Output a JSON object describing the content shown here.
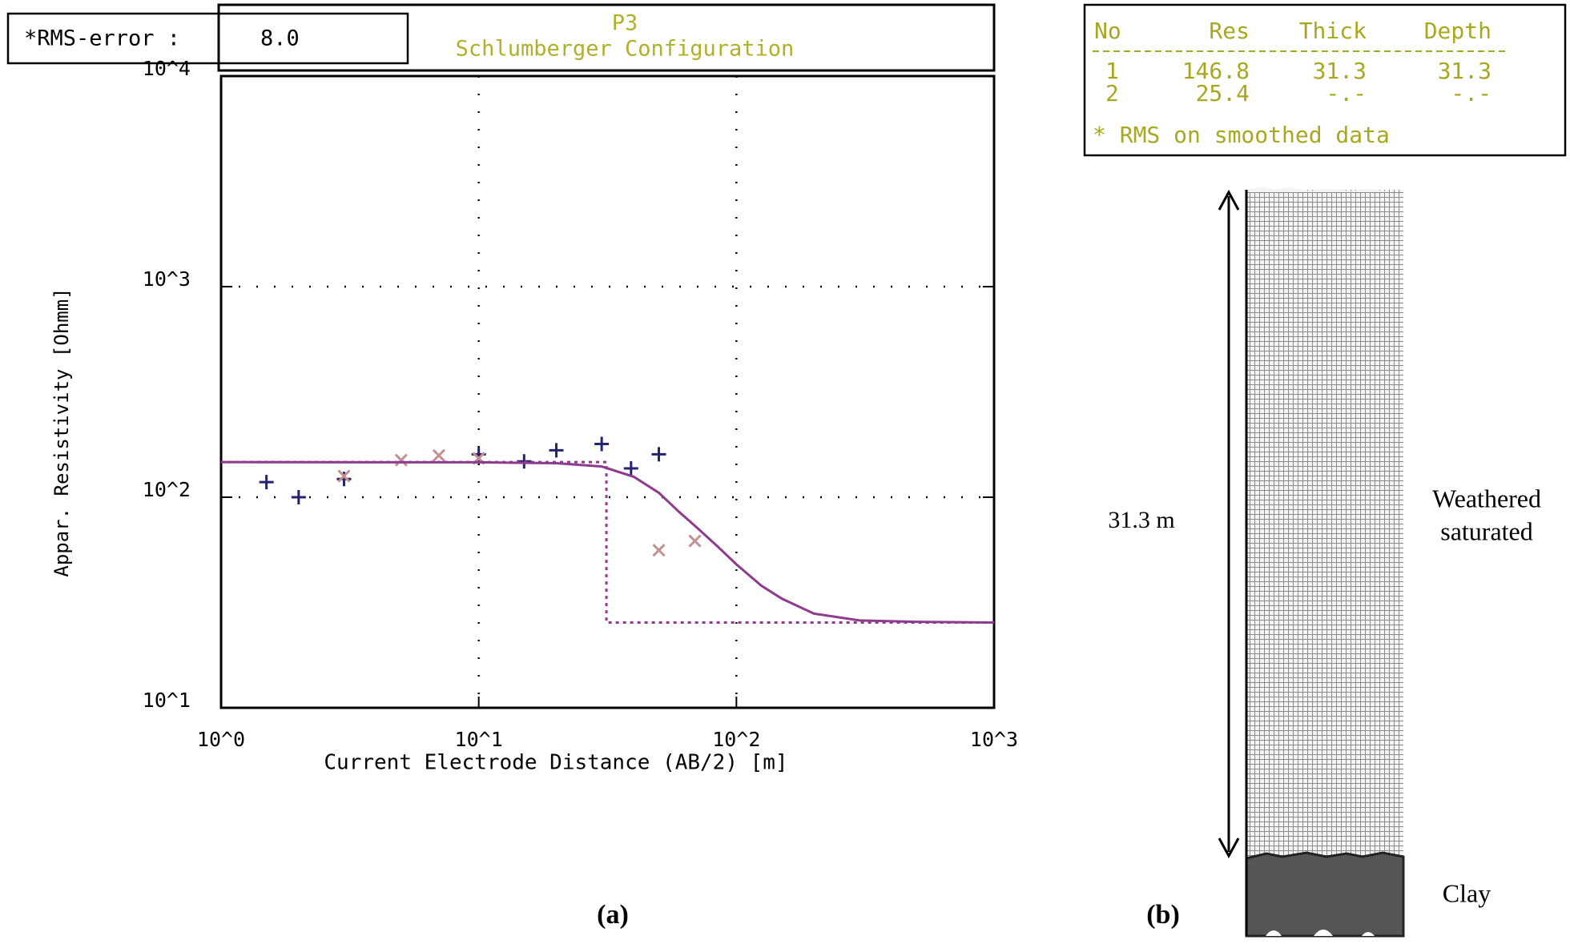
{
  "chart_data": {
    "type": "scatter",
    "title": "P3",
    "subtitle": "Schlumberger Configuration",
    "xlabel": "Current Electrode Distance (AB/2) [m]",
    "ylabel": "Appar. Resistivity [Ohmm]",
    "log_x": true,
    "log_y": true,
    "grid": true,
    "xlim": [
      1,
      1000
    ],
    "ylim": [
      10,
      10000
    ],
    "xticks": [
      {
        "value": 1,
        "label": "10^0"
      },
      {
        "value": 10,
        "label": "10^1"
      },
      {
        "value": 100,
        "label": "10^2"
      },
      {
        "value": 1000,
        "label": "10^3"
      }
    ],
    "yticks": [
      {
        "value": 10,
        "label": "10^1"
      },
      {
        "value": 100,
        "label": "10^2"
      },
      {
        "value": 1000,
        "label": "10^3"
      },
      {
        "value": 10000,
        "label": "10^4"
      }
    ],
    "series": [
      {
        "type": "scatter",
        "marker": "+",
        "color": "#23236e",
        "x": [
          1.5,
          2,
          3,
          10,
          15,
          20,
          30,
          39,
          50
        ],
        "values": [
          118,
          100,
          122,
          160,
          148,
          167,
          179,
          137,
          160
        ]
      },
      {
        "type": "scatter",
        "marker": "x",
        "color": "#c49090",
        "x": [
          3,
          5,
          7,
          10,
          50,
          69
        ],
        "values": [
          126,
          150,
          158,
          153,
          56,
          62
        ]
      },
      {
        "type": "line",
        "dash": false,
        "color": "#8e3a8e",
        "x": [
          1,
          10,
          20,
          30,
          40,
          50,
          60,
          70,
          85,
          100,
          125,
          150,
          200,
          300,
          500,
          1000
        ],
        "values": [
          146.8,
          146.5,
          145,
          140,
          125,
          105,
          85,
          72,
          58,
          48,
          38,
          33,
          28,
          26,
          25.6,
          25.4
        ]
      },
      {
        "type": "line",
        "dash": true,
        "color": "#8e3a8e",
        "x": [
          1,
          31.3,
          31.3,
          1000
        ],
        "values": [
          146.8,
          146.8,
          25.4,
          25.4
        ]
      }
    ]
  },
  "rms": {
    "label": "*RMS-error :",
    "value": "8.0"
  },
  "layer_table": {
    "header": [
      "No",
      "Res",
      "Thick",
      "Depth"
    ],
    "rows": [
      [
        "1",
        "146.8",
        "31.3",
        "31.3"
      ],
      [
        "2",
        "25.4",
        "-.-",
        "-.-"
      ]
    ],
    "note": "* RMS on smoothed data"
  },
  "column": {
    "thickness_label": "31.3 m",
    "layer1": [
      "Weathered",
      "saturated"
    ],
    "layer2": "Clay"
  },
  "captions": [
    "(a)",
    "(b)"
  ]
}
